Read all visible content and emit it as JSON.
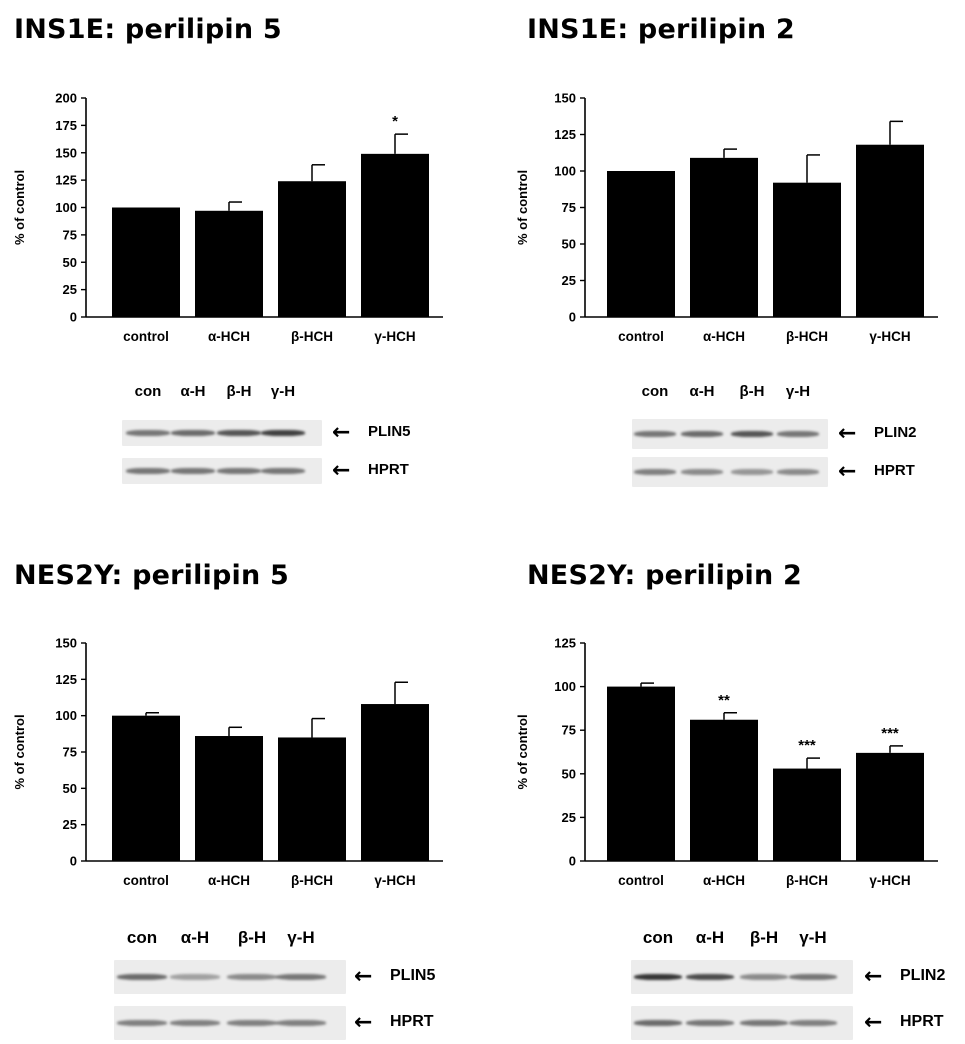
{
  "chart_data": [
    {
      "type": "bar",
      "title": "INS1E: perilipin 5",
      "ylabel": "% of control",
      "xlabel": "",
      "categories": [
        "control",
        "α-HCH",
        "β-HCH",
        "γ-HCH"
      ],
      "values": [
        100,
        97,
        124,
        149
      ],
      "errors": [
        0,
        8,
        15,
        18
      ],
      "significance": [
        "",
        "",
        "",
        "*"
      ],
      "ylim": [
        0,
        200
      ],
      "yticks": [
        0,
        25,
        50,
        75,
        100,
        125,
        150,
        175,
        200
      ],
      "grid": false,
      "blot": {
        "lanes": [
          "con",
          "α-H",
          "β-H",
          "γ-H"
        ],
        "rows": [
          {
            "label": "PLIN5",
            "intensity": [
              0.55,
              0.6,
              0.7,
              0.8
            ]
          },
          {
            "label": "HPRT",
            "intensity": [
              0.55,
              0.55,
              0.55,
              0.55
            ]
          }
        ]
      }
    },
    {
      "type": "bar",
      "title": "INS1E: perilipin 2",
      "ylabel": "% of control",
      "xlabel": "",
      "categories": [
        "control",
        "α-HCH",
        "β-HCH",
        "γ-HCH"
      ],
      "values": [
        100,
        109,
        92,
        118
      ],
      "errors": [
        0,
        6,
        19,
        16
      ],
      "significance": [
        "",
        "",
        "",
        ""
      ],
      "ylim": [
        0,
        150
      ],
      "yticks": [
        0,
        25,
        50,
        75,
        100,
        125,
        150
      ],
      "grid": false,
      "blot": {
        "lanes": [
          "con",
          "α-H",
          "β-H",
          "γ-H"
        ],
        "rows": [
          {
            "label": "PLIN2",
            "intensity": [
              0.55,
              0.6,
              0.7,
              0.55
            ]
          },
          {
            "label": "HPRT",
            "intensity": [
              0.5,
              0.45,
              0.4,
              0.45
            ]
          }
        ]
      }
    },
    {
      "type": "bar",
      "title": "NES2Y: perilipin 5",
      "ylabel": "% of control",
      "xlabel": "",
      "categories": [
        "control",
        "α-HCH",
        "β-HCH",
        "γ-HCH"
      ],
      "values": [
        100,
        86,
        85,
        108
      ],
      "errors": [
        2,
        6,
        13,
        15
      ],
      "significance": [
        "",
        "",
        "",
        ""
      ],
      "ylim": [
        0,
        150
      ],
      "yticks": [
        0,
        25,
        50,
        75,
        100,
        125,
        150
      ],
      "grid": false,
      "blot": {
        "lanes": [
          "con",
          "α-H",
          "β-H",
          "γ-H"
        ],
        "rows": [
          {
            "label": "PLIN5",
            "intensity": [
              0.6,
              0.35,
              0.45,
              0.55
            ]
          },
          {
            "label": "HPRT",
            "intensity": [
              0.5,
              0.5,
              0.5,
              0.5
            ]
          }
        ]
      }
    },
    {
      "type": "bar",
      "title": "NES2Y: perilipin 2",
      "ylabel": "% of control",
      "xlabel": "",
      "categories": [
        "control",
        "α-HCH",
        "β-HCH",
        "γ-HCH"
      ],
      "values": [
        100,
        81,
        53,
        62
      ],
      "errors": [
        2,
        4,
        6,
        4
      ],
      "significance": [
        "",
        "**",
        "***",
        "***"
      ],
      "ylim": [
        0,
        125
      ],
      "yticks": [
        0,
        25,
        50,
        75,
        100,
        125
      ],
      "grid": false,
      "blot": {
        "lanes": [
          "con",
          "α-H",
          "β-H",
          "γ-H"
        ],
        "rows": [
          {
            "label": "PLIN2",
            "intensity": [
              0.85,
              0.75,
              0.45,
              0.55
            ]
          },
          {
            "label": "HPRT",
            "intensity": [
              0.6,
              0.55,
              0.55,
              0.5
            ]
          }
        ]
      }
    }
  ],
  "style": {
    "bar_color": "#000000",
    "background": "#ffffff",
    "blot_background": "#ececec"
  }
}
